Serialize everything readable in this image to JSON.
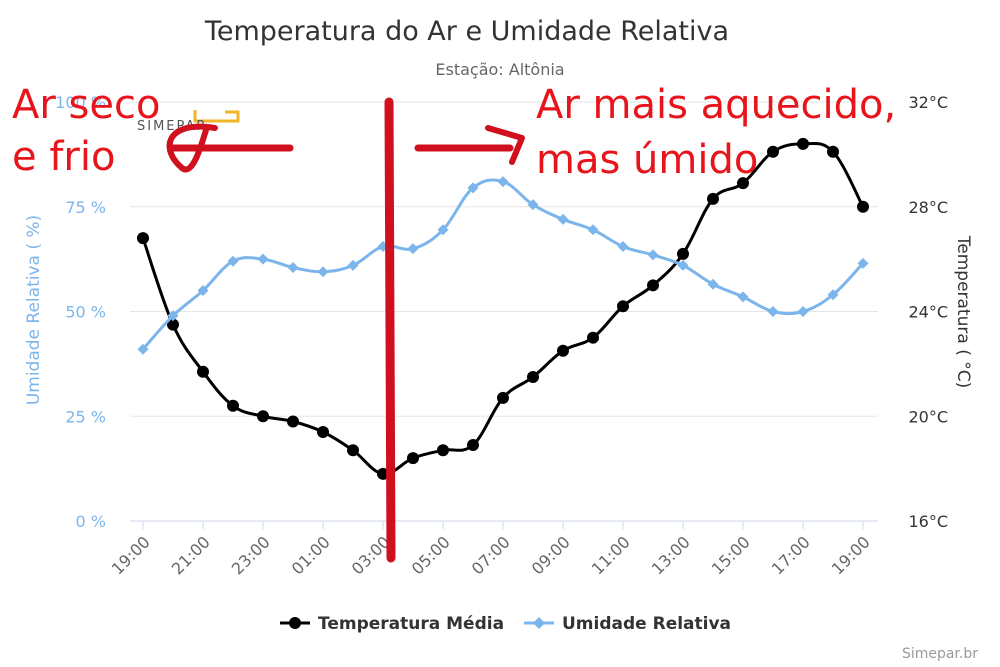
{
  "chart_data": {
    "type": "line",
    "title": "Temperatura do Ar e Umidade Relativa",
    "subtitle": "Estação: Altônia",
    "credit": "Simepar.br",
    "logo_text": "SIMEPAR",
    "x_labels_shown": [
      "19:00",
      "21:00",
      "23:00",
      "01:00",
      "03:00",
      "05:00",
      "07:00",
      "09:00",
      "11:00",
      "13:00",
      "15:00",
      "17:00",
      "19:00"
    ],
    "y_left": {
      "title": "Umidade Relativa ( %)",
      "ticks": [
        "0 %",
        "25 %",
        "50 %",
        "75 %",
        "100 %"
      ],
      "tick_values": [
        0,
        25,
        50,
        75,
        100
      ],
      "range": [
        0,
        100
      ],
      "color": "#7cb5ec"
    },
    "y_right": {
      "title": "Temperatura ( °C)",
      "ticks": [
        "16°C",
        "20°C",
        "24°C",
        "28°C",
        "32°C"
      ],
      "tick_values": [
        16,
        20,
        24,
        28,
        32
      ],
      "range": [
        16,
        32
      ],
      "color": "#333333"
    },
    "series": [
      {
        "name": "Temperatura Média",
        "axis": "right",
        "color": "#000000",
        "marker": "circle",
        "values": [
          26.8,
          23.5,
          21.7,
          20.4,
          20.0,
          19.8,
          19.4,
          18.7,
          17.8,
          18.4,
          18.7,
          18.9,
          20.7,
          21.5,
          22.5,
          23.0,
          24.2,
          25.0,
          26.2,
          28.3,
          28.9,
          30.1,
          30.4,
          30.1,
          28.0
        ]
      },
      {
        "name": "Umidade Relativa",
        "axis": "left",
        "color": "#7cb5ec",
        "marker": "diamond",
        "values": [
          41,
          49,
          55,
          62,
          62.5,
          60.5,
          59.5,
          61,
          65.5,
          65,
          69.5,
          79.5,
          81,
          75.5,
          72,
          69.5,
          65.5,
          63.5,
          61,
          56.5,
          53.5,
          50,
          50,
          54,
          61.5
        ]
      }
    ],
    "legend": [
      "Temperatura Média",
      "Umidade Relativa"
    ],
    "annotations": {
      "left_lines": [
        "Ar seco",
        "e frio"
      ],
      "right_lines": [
        "Ar mais aquecido,",
        "mas úmido"
      ],
      "color": "#e8141b"
    }
  }
}
